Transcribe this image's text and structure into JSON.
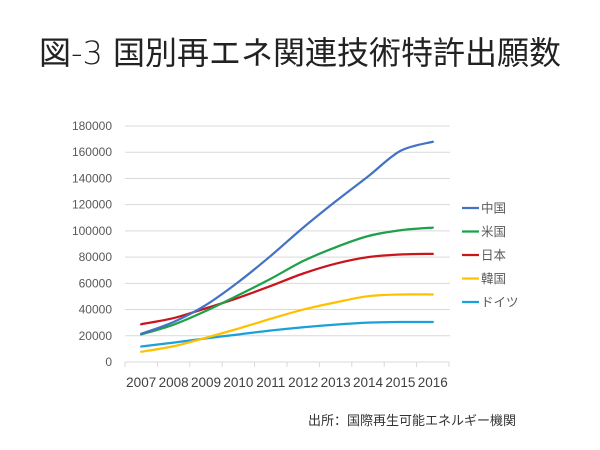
{
  "title": "図-3 国別再エネ関連技術特許出願数",
  "source": "出所：国際再生可能エネルギー機関",
  "chart_data": {
    "type": "line",
    "title": "図-3 国別再エネ関連技術特許出願数",
    "xlabel": "",
    "ylabel": "",
    "categories": [
      "2007",
      "2008",
      "2009",
      "2010",
      "2011",
      "2012",
      "2013",
      "2014",
      "2015",
      "2016"
    ],
    "ylim": [
      0,
      180000
    ],
    "yticks": [
      0,
      20000,
      40000,
      60000,
      80000,
      100000,
      120000,
      140000,
      160000,
      180000
    ],
    "ytick_labels": [
      "0",
      "20000",
      "40000",
      "60000",
      "80000",
      "100000",
      "120000",
      "140000",
      "160000",
      "180000"
    ],
    "grid": true,
    "legend_position": "right",
    "series": [
      {
        "name": "中国",
        "color": "#4472C4",
        "values": [
          21500,
          30500,
          43500,
          61000,
          81000,
          102500,
          122500,
          141500,
          161000,
          168000
        ]
      },
      {
        "name": "米国",
        "color": "#1FA04A",
        "values": [
          21000,
          28500,
          39000,
          51000,
          63500,
          77000,
          87500,
          96000,
          100500,
          102500
        ]
      },
      {
        "name": "日本",
        "color": "#C8161D",
        "values": [
          28800,
          33500,
          41000,
          49000,
          58000,
          67500,
          75000,
          80000,
          82000,
          82500
        ]
      },
      {
        "name": "韓国",
        "color": "#FFC000",
        "values": [
          7800,
          12000,
          18500,
          25500,
          33000,
          40000,
          45500,
          50200,
          51500,
          51500
        ]
      },
      {
        "name": "ドイツ",
        "color": "#1BA1DA",
        "values": [
          11800,
          14800,
          18000,
          21000,
          24000,
          26500,
          28500,
          30000,
          30500,
          30500
        ]
      }
    ]
  }
}
